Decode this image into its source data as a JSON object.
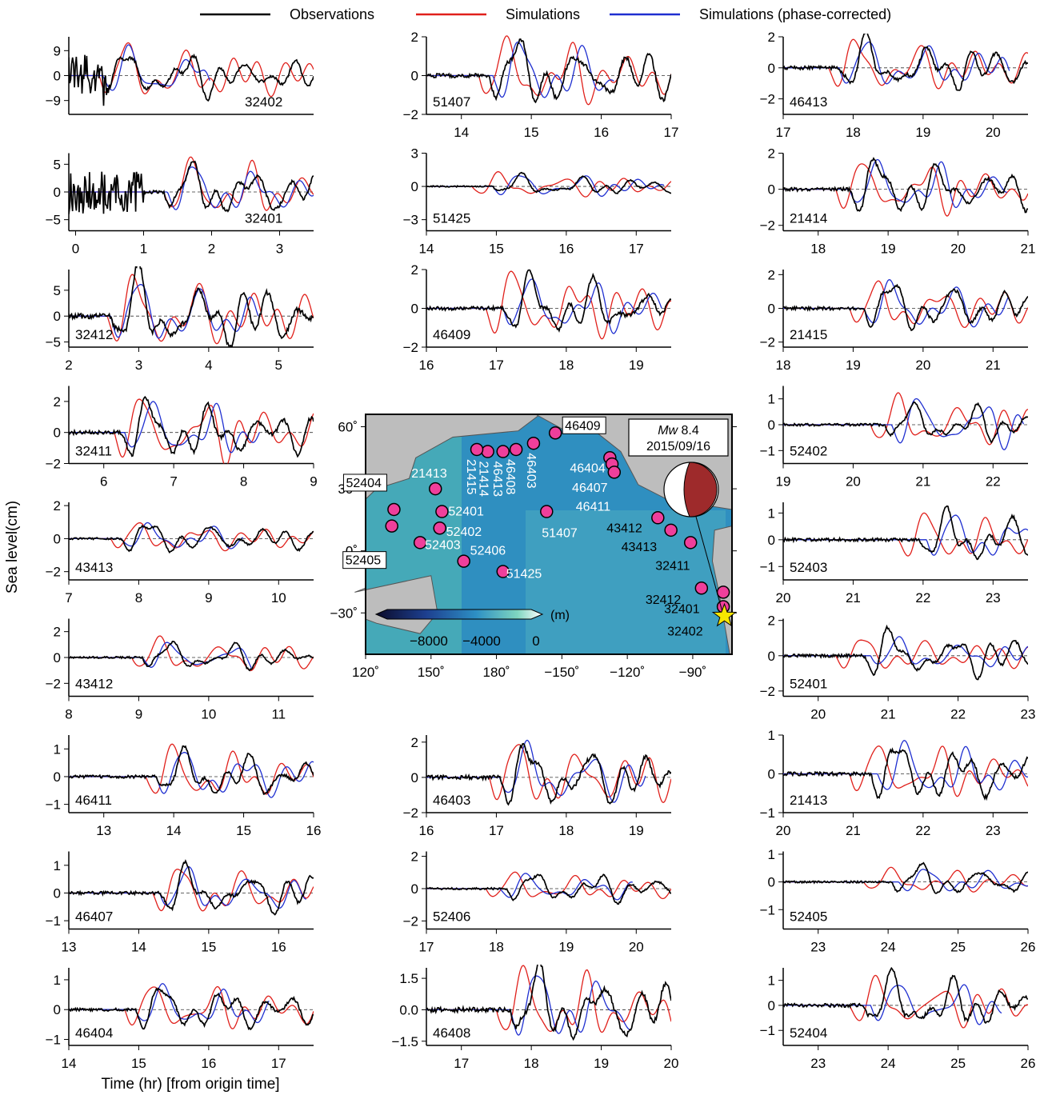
{
  "legend": {
    "items": [
      {
        "label": "Observations",
        "color": "#000000"
      },
      {
        "label": "Simulations",
        "color": "#e0201b"
      },
      {
        "label": "Simulations (phase-corrected)",
        "color": "#1f2fd0"
      }
    ]
  },
  "axes_text": {
    "ylabel": "Sea level(cm)",
    "xlabel": "Time (hr) [from origin time]"
  },
  "map": {
    "event_lines": [
      "8.4",
      "2015/09/16"
    ],
    "event_prefix": "Mw",
    "colorbar_unit": "(m)",
    "colorbar_ticks": [
      "−8000",
      "−4000",
      "0"
    ],
    "lon_ticks": [
      "120˚",
      "150˚",
      "180˚",
      "−150˚",
      "−120˚",
      "−90˚"
    ],
    "lat_ticks": [
      "60˚",
      "30˚",
      "0˚",
      "−30˚"
    ],
    "colors": {
      "ocean": "#2f8fc0",
      "land": "#bdbdbd",
      "marker": "#ef3f9b",
      "star": "#f7e600",
      "beachball_fill": "#9e2a2b"
    },
    "stations": [
      {
        "id": "46409",
        "boxed": true
      },
      {
        "id": "46404",
        "boxed": false
      },
      {
        "id": "46407",
        "boxed": false
      },
      {
        "id": "46411",
        "boxed": false
      },
      {
        "id": "46403",
        "boxed": false
      },
      {
        "id": "46408",
        "boxed": false
      },
      {
        "id": "46413",
        "boxed": false
      },
      {
        "id": "21414",
        "boxed": false
      },
      {
        "id": "21415",
        "boxed": false
      },
      {
        "id": "21413",
        "boxed": false
      },
      {
        "id": "52404",
        "boxed": true
      },
      {
        "id": "52401",
        "boxed": false
      },
      {
        "id": "52402",
        "boxed": false
      },
      {
        "id": "52405",
        "boxed": true
      },
      {
        "id": "52403",
        "boxed": false
      },
      {
        "id": "52406",
        "boxed": false
      },
      {
        "id": "51425",
        "boxed": false
      },
      {
        "id": "51407",
        "boxed": false
      },
      {
        "id": "43412",
        "boxed": false
      },
      {
        "id": "43413",
        "boxed": false
      },
      {
        "id": "32411",
        "boxed": false
      },
      {
        "id": "32412",
        "boxed": false
      },
      {
        "id": "32401",
        "boxed": false
      },
      {
        "id": "32402",
        "boxed": false
      }
    ]
  },
  "chart_data": [
    {
      "type": "line",
      "station": "32402",
      "x_range": [
        -0.1,
        3.5
      ],
      "xticks": [],
      "ylim": [
        -14,
        14
      ],
      "yticks": [
        -9,
        0,
        9
      ],
      "ytick_labels": [
        "−9",
        "0",
        "9"
      ],
      "events": {
        "obs": {
          "t0": 0.6,
          "amp": 9
        },
        "sim": {
          "t0": 0.6,
          "amp": 12
        },
        "cor": {
          "t0": 0.65,
          "amp": 10
        }
      },
      "noise": {
        "until": 0.5,
        "amp": 9
      }
    },
    {
      "type": "line",
      "station": "32401",
      "x_range": [
        -0.1,
        3.5
      ],
      "xticks": [
        0,
        1,
        2,
        3
      ],
      "xtick_labels": [
        "0",
        "1",
        "2",
        "3"
      ],
      "ylim": [
        -7,
        7
      ],
      "yticks": [
        -5,
        0,
        5
      ],
      "ytick_labels": [
        "−5",
        "0",
        "5"
      ],
      "events": {
        "obs": {
          "t0": 1.55,
          "amp": 5
        },
        "sim": {
          "t0": 1.55,
          "amp": 6
        },
        "cor": {
          "t0": 1.6,
          "amp": 5
        }
      },
      "noise": {
        "until": 1.0,
        "amp": 5
      }
    },
    {
      "type": "line",
      "station": "32412",
      "x_range": [
        2,
        5.5
      ],
      "xticks": [
        2,
        3,
        4,
        5
      ],
      "xtick_labels": [
        "2",
        "3",
        "4",
        "5"
      ],
      "ylim": [
        -6,
        9
      ],
      "yticks": [
        -5,
        0,
        5
      ],
      "ytick_labels": [
        "−5",
        "0",
        "5"
      ],
      "events": {
        "obs": {
          "t0": 2.85,
          "amp": 8
        },
        "sim": {
          "t0": 2.8,
          "amp": 8
        },
        "cor": {
          "t0": 2.85,
          "amp": 7
        }
      }
    },
    {
      "type": "line",
      "station": "32411",
      "x_range": [
        5.5,
        9
      ],
      "xticks": [
        6,
        7,
        8,
        9
      ],
      "xtick_labels": [
        "6",
        "7",
        "8",
        "9"
      ],
      "ylim": [
        -2,
        3
      ],
      "yticks": [
        -2,
        0,
        2
      ],
      "ytick_labels": [
        "−2",
        "0",
        "2"
      ],
      "events": {
        "obs": {
          "t0": 6.5,
          "amp": 2
        },
        "sim": {
          "t0": 6.4,
          "amp": 2.5
        },
        "cor": {
          "t0": 6.55,
          "amp": 2
        }
      }
    },
    {
      "type": "line",
      "station": "43413",
      "x_range": [
        7,
        10.5
      ],
      "xticks": [
        7,
        8,
        9,
        10
      ],
      "xtick_labels": [
        "7",
        "8",
        "9",
        "10"
      ],
      "ylim": [
        -2.5,
        2.2
      ],
      "yticks": [
        -2,
        0,
        2
      ],
      "ytick_labels": [
        "−2",
        "0",
        "2"
      ],
      "events": {
        "obs": {
          "t0": 8.0,
          "amp": 1
        },
        "sim": {
          "t0": 7.85,
          "amp": 1
        },
        "cor": {
          "t0": 8.0,
          "amp": 0.9
        }
      }
    },
    {
      "type": "line",
      "station": "43412",
      "x_range": [
        8,
        11.5
      ],
      "xticks": [
        8,
        9,
        10,
        11
      ],
      "xtick_labels": [
        "8",
        "9",
        "10",
        "11"
      ],
      "ylim": [
        -3,
        3
      ],
      "yticks": [
        -2,
        0,
        2
      ],
      "ytick_labels": [
        "−2",
        "0",
        "2"
      ],
      "events": {
        "obs": {
          "t0": 9.3,
          "amp": 1.2
        },
        "sim": {
          "t0": 9.15,
          "amp": 1.5
        },
        "cor": {
          "t0": 9.3,
          "amp": 1.2
        }
      }
    },
    {
      "type": "line",
      "station": "46411",
      "x_range": [
        12.5,
        16
      ],
      "xticks": [
        13,
        14,
        15,
        16
      ],
      "xtick_labels": [
        "13",
        "14",
        "15",
        "16"
      ],
      "ylim": [
        -1.3,
        1.5
      ],
      "yticks": [
        -1,
        0,
        1
      ],
      "ytick_labels": [
        "−1",
        "0",
        "1"
      ],
      "events": {
        "obs": {
          "t0": 14.0,
          "amp": 0.9
        },
        "sim": {
          "t0": 13.85,
          "amp": 1.1
        },
        "cor": {
          "t0": 14.0,
          "amp": 1.0
        }
      }
    },
    {
      "type": "line",
      "station": "46407",
      "x_range": [
        13,
        16.5
      ],
      "xticks": [
        13,
        14,
        15,
        16
      ],
      "xtick_labels": [
        "13",
        "14",
        "15",
        "16"
      ],
      "ylim": [
        -1.3,
        1.5
      ],
      "yticks": [
        -1,
        0,
        1
      ],
      "ytick_labels": [
        "−1",
        "0",
        "1"
      ],
      "events": {
        "obs": {
          "t0": 14.55,
          "amp": 0.9
        },
        "sim": {
          "t0": 14.45,
          "amp": 1.0
        },
        "cor": {
          "t0": 14.55,
          "amp": 0.9
        }
      }
    },
    {
      "type": "line",
      "station": "46404",
      "x_range": [
        14,
        17.5
      ],
      "xticks": [
        14,
        15,
        16,
        17
      ],
      "xtick_labels": [
        "14",
        "15",
        "16",
        "17"
      ],
      "ylim": [
        -1.2,
        1.4
      ],
      "yticks": [
        -1,
        0,
        1
      ],
      "ytick_labels": [
        "−1",
        "0",
        "1"
      ],
      "events": {
        "obs": {
          "t0": 15.2,
          "amp": 0.8
        },
        "sim": {
          "t0": 15.05,
          "amp": 0.9
        },
        "cor": {
          "t0": 15.2,
          "amp": 0.8
        }
      }
    },
    {
      "type": "line",
      "station": "51407",
      "x_range": [
        13.5,
        17
      ],
      "xticks": [
        14,
        15,
        16,
        17
      ],
      "xtick_labels": [
        "14",
        "15",
        "16",
        "17"
      ],
      "ylim": [
        -2,
        2
      ],
      "yticks": [
        -2,
        0,
        2
      ],
      "ytick_labels": [
        "−2",
        "0",
        "2"
      ],
      "events": {
        "obs": {
          "t0": 14.65,
          "amp": 1.8
        },
        "sim": {
          "t0": 14.5,
          "amp": 2
        },
        "cor": {
          "t0": 14.7,
          "amp": 1.8
        }
      }
    },
    {
      "type": "line",
      "station": "51425",
      "x_range": [
        14,
        17.5
      ],
      "xticks": [
        14,
        15,
        16,
        17
      ],
      "xtick_labels": [
        "14",
        "15",
        "16",
        "17"
      ],
      "ylim": [
        -4,
        3
      ],
      "yticks": [
        -3,
        0,
        3
      ],
      "ytick_labels": [
        "−3",
        "0",
        "3"
      ],
      "events": {
        "obs": {
          "t0": 15.2,
          "amp": 1
        },
        "sim": {
          "t0": 14.9,
          "amp": 1.2
        },
        "cor": {
          "t0": 15.2,
          "amp": 1.2
        }
      }
    },
    {
      "type": "line",
      "station": "46409",
      "x_range": [
        16,
        19.5
      ],
      "xticks": [
        16,
        17,
        18,
        19
      ],
      "xtick_labels": [
        "16",
        "17",
        "18",
        "19"
      ],
      "ylim": [
        -2,
        2
      ],
      "yticks": [
        -2,
        0,
        2
      ],
      "ytick_labels": [
        "−2",
        "0",
        "2"
      ],
      "events": {
        "obs": {
          "t0": 17.35,
          "amp": 1.6
        },
        "sim": {
          "t0": 17.1,
          "amp": 2
        },
        "cor": {
          "t0": 17.35,
          "amp": 1.6
        }
      }
    },
    {
      "type": "line",
      "station": "46403",
      "x_range": [
        16,
        19.5
      ],
      "xticks": [
        16,
        17,
        18,
        19
      ],
      "xtick_labels": [
        "16",
        "17",
        "18",
        "19"
      ],
      "ylim": [
        -2,
        2.4
      ],
      "yticks": [
        -2,
        0,
        2
      ],
      "ytick_labels": [
        "−2",
        "0",
        "2"
      ],
      "events": {
        "obs": {
          "t0": 17.3,
          "amp": 1.9
        },
        "sim": {
          "t0": 17.15,
          "amp": 2.1
        },
        "cor": {
          "t0": 17.3,
          "amp": 1.9
        }
      }
    },
    {
      "type": "line",
      "station": "52406",
      "x_range": [
        17,
        20.5
      ],
      "xticks": [
        17,
        18,
        19,
        20
      ],
      "xtick_labels": [
        "17",
        "18",
        "19",
        "20"
      ],
      "ylim": [
        -2.5,
        2.3
      ],
      "yticks": [
        -2,
        0,
        2
      ],
      "ytick_labels": [
        "−2",
        "0",
        "2"
      ],
      "events": {
        "obs": {
          "t0": 18.4,
          "amp": 1
        },
        "sim": {
          "t0": 18.1,
          "amp": 1
        },
        "cor": {
          "t0": 18.3,
          "amp": 0.9
        }
      }
    },
    {
      "type": "line",
      "station": "46408",
      "x_range": [
        16.5,
        20
      ],
      "xticks": [
        17,
        18,
        19,
        20
      ],
      "xtick_labels": [
        "17",
        "18",
        "19",
        "20"
      ],
      "ylim": [
        -1.7,
        2.0
      ],
      "yticks": [
        -1.5,
        0,
        1.5
      ],
      "ytick_labels": [
        "−1.5",
        "0.0",
        "1.5"
      ],
      "events": {
        "obs": {
          "t0": 17.95,
          "amp": 1.9
        },
        "sim": {
          "t0": 17.75,
          "amp": 2.0
        },
        "cor": {
          "t0": 17.95,
          "amp": 1.9
        }
      }
    },
    {
      "type": "line",
      "station": "46413",
      "x_range": [
        17,
        20.5
      ],
      "xticks": [
        17,
        18,
        19,
        20
      ],
      "xtick_labels": [
        "17",
        "18",
        "19",
        "20"
      ],
      "ylim": [
        -3,
        2
      ],
      "yticks": [
        -2,
        0,
        2
      ],
      "ytick_labels": [
        "−2",
        "0",
        "2"
      ],
      "events": {
        "obs": {
          "t0": 18.05,
          "amp": 1.8
        },
        "sim": {
          "t0": 17.9,
          "amp": 1.9
        },
        "cor": {
          "t0": 18.05,
          "amp": 1.8
        }
      }
    },
    {
      "type": "line",
      "station": "21414",
      "x_range": [
        17.5,
        21
      ],
      "xticks": [
        18,
        19,
        20,
        21
      ],
      "xtick_labels": [
        "18",
        "19",
        "20",
        "21"
      ],
      "ylim": [
        -2.3,
        2
      ],
      "yticks": [
        -2,
        0,
        2
      ],
      "ytick_labels": [
        "−2",
        "0",
        "2"
      ],
      "events": {
        "obs": {
          "t0": 18.7,
          "amp": 1.6
        },
        "sim": {
          "t0": 18.5,
          "amp": 1.7
        },
        "cor": {
          "t0": 18.7,
          "amp": 1.6
        }
      }
    },
    {
      "type": "line",
      "station": "21415",
      "x_range": [
        18,
        21.5
      ],
      "xticks": [
        18,
        19,
        20,
        21
      ],
      "xtick_labels": [
        "18",
        "19",
        "20",
        "21"
      ],
      "ylim": [
        -2.3,
        2.3
      ],
      "yticks": [
        -2,
        0,
        2
      ],
      "ytick_labels": [
        "−2",
        "0",
        "2"
      ],
      "events": {
        "obs": {
          "t0": 19.4,
          "amp": 1.6
        },
        "sim": {
          "t0": 19.2,
          "amp": 1.6
        },
        "cor": {
          "t0": 19.4,
          "amp": 1.6
        }
      }
    },
    {
      "type": "line",
      "station": "52402",
      "x_range": [
        19,
        22.5
      ],
      "xticks": [
        19,
        20,
        21,
        22
      ],
      "xtick_labels": [
        "19",
        "20",
        "21",
        "22"
      ],
      "ylim": [
        -1.5,
        1.5
      ],
      "yticks": [
        -1,
        0,
        1
      ],
      "ytick_labels": [
        "−1",
        "0",
        "1"
      ],
      "events": {
        "obs": {
          "t0": 20.7,
          "amp": 0.8
        },
        "sim": {
          "t0": 20.5,
          "amp": 1.1
        },
        "cor": {
          "t0": 20.8,
          "amp": 1.1
        }
      }
    },
    {
      "type": "line",
      "station": "52403",
      "x_range": [
        20,
        23.5
      ],
      "xticks": [
        20,
        21,
        22,
        23
      ],
      "xtick_labels": [
        "20",
        "21",
        "22",
        "23"
      ],
      "ylim": [
        -1.5,
        1.4
      ],
      "yticks": [
        -1,
        0,
        1
      ],
      "ytick_labels": [
        "−1",
        "0",
        "1"
      ],
      "events": {
        "obs": {
          "t0": 22.2,
          "amp": 1
        },
        "sim": {
          "t0": 21.9,
          "amp": 1
        },
        "cor": {
          "t0": 22.3,
          "amp": 1
        }
      }
    },
    {
      "type": "line",
      "station": "52401",
      "x_range": [
        19.5,
        23
      ],
      "xticks": [
        20,
        21,
        22,
        23
      ],
      "xtick_labels": [
        "20",
        "21",
        "22",
        "23"
      ],
      "ylim": [
        -2.3,
        2.1
      ],
      "yticks": [
        -2,
        0,
        2
      ],
      "ytick_labels": [
        "−2",
        "0",
        "2"
      ],
      "events": {
        "obs": {
          "t0": 20.9,
          "amp": 1.4
        },
        "sim": {
          "t0": 20.5,
          "amp": 1.1
        },
        "cor": {
          "t0": 21.0,
          "amp": 1.0
        }
      }
    },
    {
      "type": "line",
      "station": "21413",
      "x_range": [
        20,
        23.5
      ],
      "xticks": [
        20,
        21,
        22,
        23
      ],
      "xtick_labels": [
        "20",
        "21",
        "22",
        "23"
      ],
      "ylim": [
        -1,
        1
      ],
      "yticks": [
        -1,
        0,
        1
      ],
      "ytick_labels": [
        "−1",
        "0",
        "1"
      ],
      "events": {
        "obs": {
          "t0": 21.5,
          "amp": 0.8
        },
        "sim": {
          "t0": 21.2,
          "amp": 0.8
        },
        "cor": {
          "t0": 21.6,
          "amp": 0.8
        }
      }
    },
    {
      "type": "line",
      "station": "52405",
      "x_range": [
        22.5,
        26
      ],
      "xticks": [
        23,
        24,
        25,
        26
      ],
      "xtick_labels": [
        "23",
        "24",
        "25",
        "26"
      ],
      "ylim": [
        -1.7,
        1.1
      ],
      "yticks": [
        -1,
        0,
        1
      ],
      "ytick_labels": [
        "−1",
        "0",
        "1"
      ],
      "events": {
        "obs": {
          "t0": 24.3,
          "amp": 0.6
        },
        "sim": {
          "t0": 23.9,
          "amp": 0.5
        },
        "cor": {
          "t0": 24.4,
          "amp": 0.5
        }
      }
    },
    {
      "type": "line",
      "station": "52404",
      "x_range": [
        22.5,
        26
      ],
      "xticks": [
        23,
        24,
        25,
        26
      ],
      "xtick_labels": [
        "23",
        "24",
        "25",
        "26"
      ],
      "ylim": [
        -1.6,
        1.5
      ],
      "yticks": [
        -1,
        0,
        1
      ],
      "ytick_labels": [
        "−1",
        "0",
        "1"
      ],
      "events": {
        "obs": {
          "t0": 23.9,
          "amp": 1.2
        },
        "sim": {
          "t0": 23.7,
          "amp": 1.1
        },
        "cor": {
          "t0": 24.0,
          "amp": 1.0
        }
      }
    }
  ]
}
